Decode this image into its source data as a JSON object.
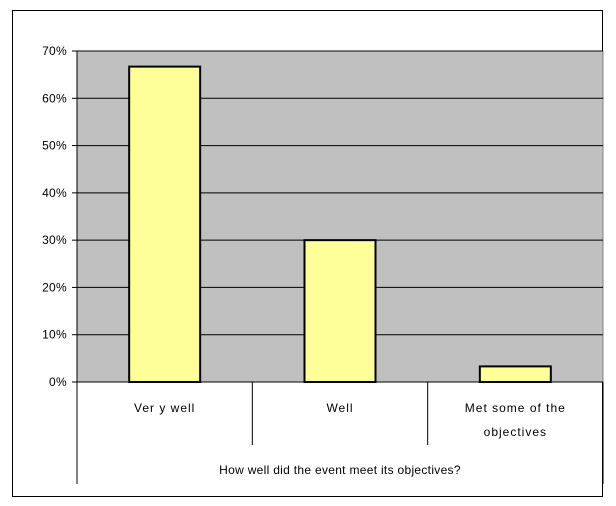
{
  "chart_data": {
    "type": "bar",
    "title": "",
    "xlabel": "How well did the event meet its objectives?",
    "ylabel": "",
    "categories": [
      [
        "Ver y well"
      ],
      [
        "Well"
      ],
      [
        "Met some of the",
        "objectives"
      ]
    ],
    "values": [
      66.7,
      30,
      3.3
    ],
    "ylim": [
      0,
      70
    ],
    "yticks": [
      0,
      10,
      20,
      30,
      40,
      50,
      60,
      70
    ],
    "ytick_labels": [
      "0%",
      "10%",
      "20%",
      "30%",
      "40%",
      "50%",
      "60%",
      "70%"
    ],
    "grid": true,
    "legend": "none",
    "colors": {
      "plot_background": "#c0c0c0",
      "bar_fill": "#ffff99",
      "bar_stroke": "#000000",
      "grid": "#000000"
    }
  }
}
